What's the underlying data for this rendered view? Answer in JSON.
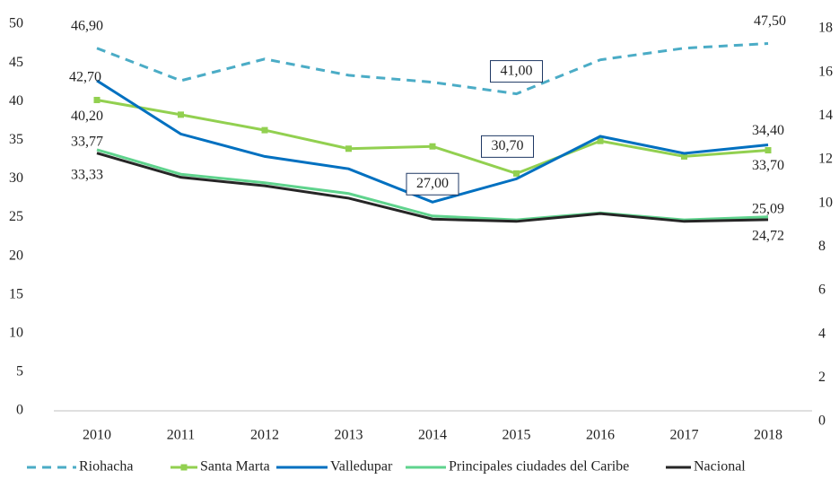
{
  "chart_data": {
    "type": "line",
    "categories": [
      "2010",
      "2011",
      "2012",
      "2013",
      "2014",
      "2015",
      "2016",
      "2017",
      "2018"
    ],
    "series": [
      {
        "name": "Riohacha",
        "color": "#4bacc6",
        "dashed": true,
        "values": [
          46.9,
          42.7,
          45.5,
          43.4,
          42.5,
          41.0,
          45.4,
          46.9,
          47.5
        ],
        "value_labels": [
          "46,90",
          null,
          null,
          null,
          null,
          "41,00",
          null,
          null,
          "47,50"
        ]
      },
      {
        "name": "Santa Marta",
        "color": "#92d050",
        "markers": true,
        "values": [
          40.2,
          38.3,
          36.3,
          33.9,
          34.2,
          30.7,
          34.9,
          32.9,
          33.7
        ],
        "value_labels": [
          "40,20",
          null,
          null,
          null,
          null,
          "30,70",
          null,
          null,
          "33,70"
        ]
      },
      {
        "name": "Valledupar",
        "color": "#0070c0",
        "values": [
          42.7,
          35.8,
          32.9,
          31.3,
          27.0,
          30.0,
          35.5,
          33.3,
          34.4
        ],
        "value_labels": [
          "42,70",
          null,
          null,
          null,
          "27,00",
          null,
          null,
          null,
          "34,40"
        ]
      },
      {
        "name": "Principales ciudades del Caribe",
        "color": "#5fd38d",
        "values": [
          33.77,
          30.6,
          29.5,
          28.1,
          25.2,
          24.7,
          25.6,
          24.7,
          25.09
        ],
        "value_labels": [
          "33,77",
          null,
          null,
          null,
          null,
          null,
          null,
          null,
          "25,09"
        ]
      },
      {
        "name": "Nacional",
        "color": "#262626",
        "values": [
          33.33,
          30.2,
          29.1,
          27.5,
          24.8,
          24.5,
          25.5,
          24.5,
          24.72
        ],
        "value_labels": [
          "33,33",
          null,
          null,
          null,
          null,
          null,
          null,
          null,
          "24,72"
        ]
      }
    ],
    "ylim": [
      0,
      50
    ],
    "yticks": [
      0,
      5,
      10,
      15,
      20,
      25,
      30,
      35,
      40,
      45,
      50
    ],
    "y2lim": [
      0,
      18
    ],
    "y2ticks": [
      0,
      2,
      4,
      6,
      8,
      10,
      12,
      14,
      16,
      18
    ],
    "legend": "bottom",
    "grid": false
  }
}
